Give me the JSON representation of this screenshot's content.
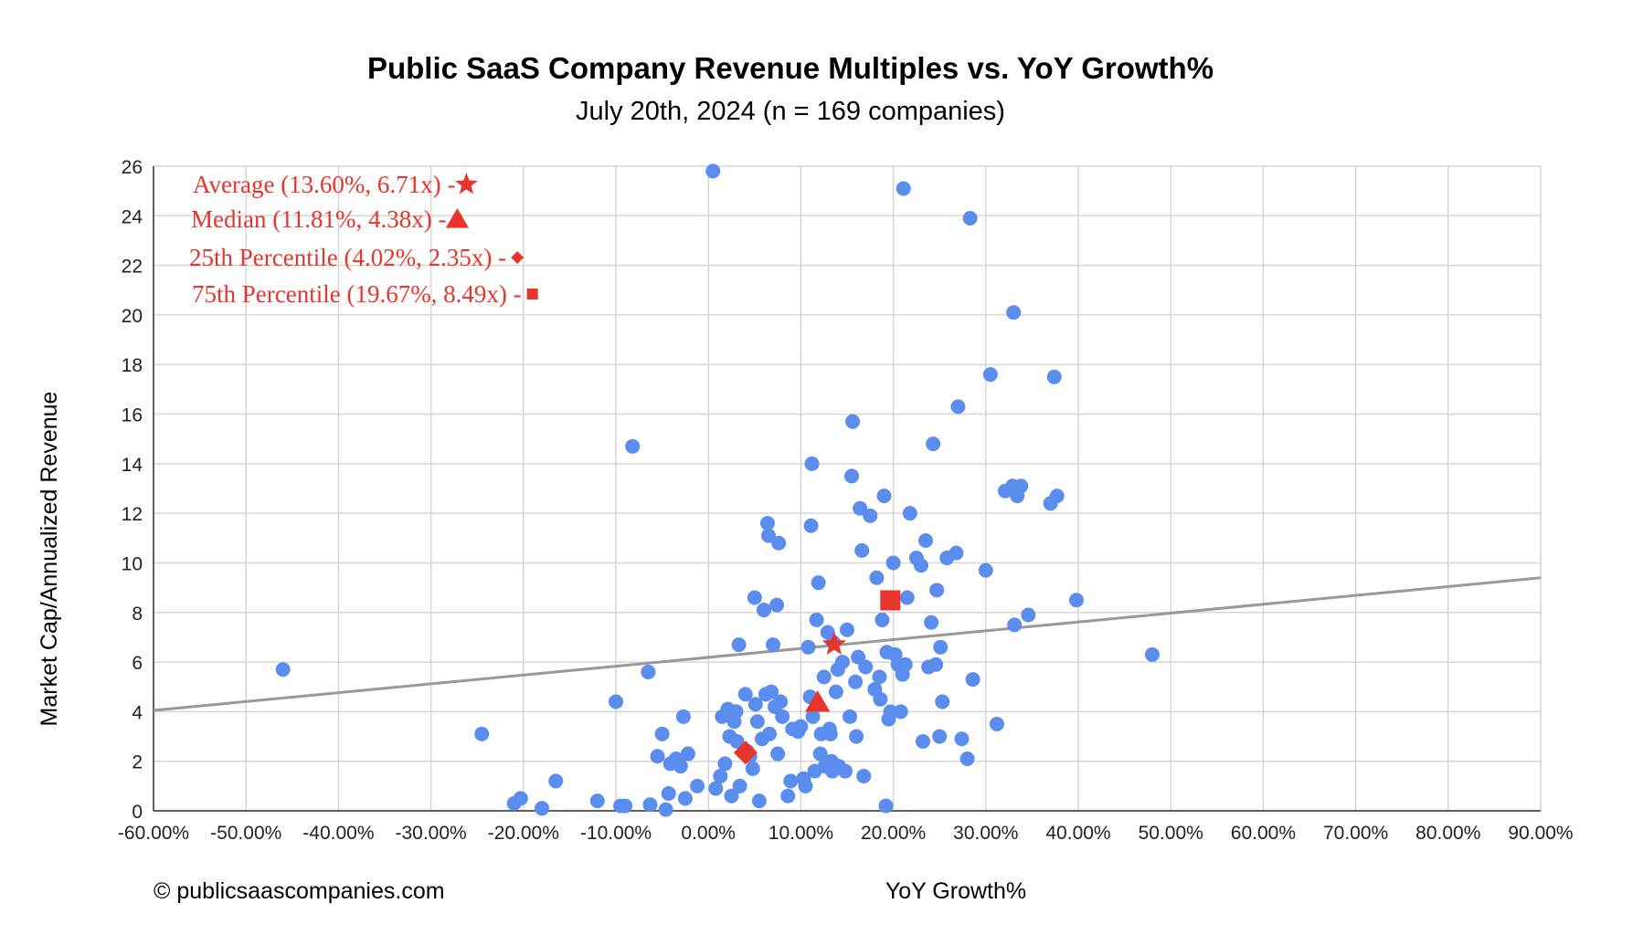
{
  "chart_data": {
    "type": "scatter",
    "title": "Public SaaS Company Revenue Multiples vs. YoY Growth%",
    "subtitle": "July 20th, 2024 (n = 169 companies)",
    "xlabel": "YoY Growth%",
    "ylabel": "Market Cap/Annualized Revenue",
    "xlim": [
      -60,
      90
    ],
    "ylim": [
      0,
      26
    ],
    "x_ticks": [
      "-60.00%",
      "-50.00%",
      "-40.00%",
      "-30.00%",
      "-20.00%",
      "-10.00%",
      "0.00%",
      "10.00%",
      "20.00%",
      "30.00%",
      "40.00%",
      "50.00%",
      "60.00%",
      "70.00%",
      "80.00%",
      "90.00%"
    ],
    "y_ticks": [
      "0",
      "2",
      "4",
      "6",
      "8",
      "10",
      "12",
      "14",
      "16",
      "18",
      "20",
      "22",
      "24",
      "26"
    ],
    "grid": true,
    "point_color": "#5b8def",
    "marker_color": "#e8352c",
    "trendline_color": "#999999",
    "trendline": [
      [
        -60,
        4.05
      ],
      [
        90,
        9.4
      ]
    ],
    "credit": "© publicsaascompanies.com",
    "annotations": [
      {
        "text": "Average (13.60%, 6.71x) - ",
        "marker": "star",
        "x": 13.6,
        "y": 6.71
      },
      {
        "text": "Median (11.81%, 4.38x) - ",
        "marker": "triangle",
        "x": 11.81,
        "y": 4.38
      },
      {
        "text": "25th Percentile (4.02%, 2.35x) - ",
        "marker": "diamond",
        "x": 4.02,
        "y": 2.35
      },
      {
        "text": "75th Percentile (19.67%, 8.49x) - ",
        "marker": "square",
        "x": 19.67,
        "y": 8.49
      }
    ],
    "series": [
      {
        "points": [
          [
            -46,
            5.7
          ],
          [
            -24.5,
            3.1
          ],
          [
            -21,
            0.3
          ],
          [
            -20.3,
            0.5
          ],
          [
            -18,
            0.1
          ],
          [
            -16.5,
            1.2
          ],
          [
            -12,
            0.4
          ],
          [
            -10,
            4.4
          ],
          [
            -9.5,
            0.2
          ],
          [
            -9,
            0.2
          ],
          [
            -8.2,
            14.7
          ],
          [
            -6.5,
            5.6
          ],
          [
            -6.3,
            0.25
          ],
          [
            -5.5,
            2.2
          ],
          [
            -5,
            3.1
          ],
          [
            -4.6,
            0.05
          ],
          [
            -4.3,
            0.7
          ],
          [
            -4.1,
            1.9
          ],
          [
            -3.5,
            2.1
          ],
          [
            -3,
            1.8
          ],
          [
            -2.7,
            3.8
          ],
          [
            -2.5,
            0.5
          ],
          [
            -2.2,
            2.3
          ],
          [
            -1.2,
            1.0
          ],
          [
            0.5,
            25.8
          ],
          [
            0.8,
            0.9
          ],
          [
            1.3,
            1.4
          ],
          [
            1.5,
            3.8
          ],
          [
            1.8,
            1.9
          ],
          [
            2.1,
            4.1
          ],
          [
            2.3,
            3.0
          ],
          [
            2.5,
            0.6
          ],
          [
            2.8,
            3.6
          ],
          [
            3.0,
            4.0
          ],
          [
            3.1,
            2.8
          ],
          [
            3.3,
            6.7
          ],
          [
            3.4,
            1.0
          ],
          [
            4.0,
            4.7
          ],
          [
            4.2,
            2.4
          ],
          [
            4.5,
            2.2
          ],
          [
            4.8,
            1.7
          ],
          [
            5.0,
            8.6
          ],
          [
            5.1,
            4.3
          ],
          [
            5.3,
            3.6
          ],
          [
            5.5,
            0.4
          ],
          [
            5.8,
            2.9
          ],
          [
            6.0,
            8.1
          ],
          [
            6.2,
            4.7
          ],
          [
            6.4,
            11.6
          ],
          [
            6.6,
            3.1
          ],
          [
            6.5,
            11.1
          ],
          [
            6.8,
            4.8
          ],
          [
            7.0,
            6.7
          ],
          [
            7.2,
            4.2
          ],
          [
            7.4,
            8.3
          ],
          [
            7.5,
            2.3
          ],
          [
            7.6,
            10.8
          ],
          [
            7.8,
            4.4
          ],
          [
            8.0,
            3.8
          ],
          [
            8.6,
            0.6
          ],
          [
            8.9,
            1.2
          ],
          [
            9.1,
            3.3
          ],
          [
            9.7,
            3.2
          ],
          [
            10.0,
            3.4
          ],
          [
            10.3,
            1.3
          ],
          [
            10.5,
            1.0
          ],
          [
            10.8,
            6.6
          ],
          [
            11.0,
            4.6
          ],
          [
            11.1,
            11.5
          ],
          [
            11.2,
            14.0
          ],
          [
            11.3,
            3.8
          ],
          [
            11.5,
            1.6
          ],
          [
            11.7,
            7.7
          ],
          [
            11.9,
            9.2
          ],
          [
            12.1,
            2.3
          ],
          [
            12.2,
            3.1
          ],
          [
            12.5,
            5.4
          ],
          [
            12.6,
            1.8
          ],
          [
            12.9,
            7.2
          ],
          [
            13.1,
            3.3
          ],
          [
            13.2,
            3.1
          ],
          [
            13.3,
            2.0
          ],
          [
            13.4,
            1.6
          ],
          [
            13.5,
            6.8
          ],
          [
            13.8,
            4.8
          ],
          [
            14.0,
            5.7
          ],
          [
            14.1,
            1.8
          ],
          [
            14.5,
            6.0
          ],
          [
            14.8,
            1.6
          ],
          [
            15.0,
            7.3
          ],
          [
            15.3,
            3.8
          ],
          [
            15.5,
            13.5
          ],
          [
            15.6,
            15.7
          ],
          [
            15.9,
            5.2
          ],
          [
            16.0,
            3.0
          ],
          [
            16.2,
            6.2
          ],
          [
            16.4,
            12.2
          ],
          [
            16.6,
            10.5
          ],
          [
            16.8,
            1.4
          ],
          [
            17.0,
            5.8
          ],
          [
            17.5,
            11.9
          ],
          [
            18.0,
            4.9
          ],
          [
            18.2,
            9.4
          ],
          [
            18.5,
            5.4
          ],
          [
            18.6,
            4.5
          ],
          [
            18.8,
            7.7
          ],
          [
            19.0,
            12.7
          ],
          [
            19.2,
            0.2
          ],
          [
            19.3,
            6.4
          ],
          [
            19.5,
            3.7
          ],
          [
            19.7,
            4.0
          ],
          [
            20.0,
            10.0
          ],
          [
            20.2,
            6.3
          ],
          [
            20.5,
            5.9
          ],
          [
            20.8,
            4.0
          ],
          [
            21.0,
            5.5
          ],
          [
            21.1,
            25.1
          ],
          [
            21.3,
            5.9
          ],
          [
            21.5,
            8.6
          ],
          [
            21.8,
            12.0
          ],
          [
            22.5,
            10.2
          ],
          [
            23.0,
            9.9
          ],
          [
            23.2,
            2.8
          ],
          [
            23.5,
            10.9
          ],
          [
            23.8,
            5.8
          ],
          [
            24.1,
            7.6
          ],
          [
            24.3,
            14.8
          ],
          [
            24.6,
            5.9
          ],
          [
            24.7,
            8.9
          ],
          [
            25.0,
            3.0
          ],
          [
            25.1,
            6.6
          ],
          [
            25.3,
            4.4
          ],
          [
            25.8,
            10.2
          ],
          [
            26.8,
            10.4
          ],
          [
            27.0,
            16.3
          ],
          [
            27.4,
            2.9
          ],
          [
            28.0,
            2.1
          ],
          [
            28.3,
            23.9
          ],
          [
            28.6,
            5.3
          ],
          [
            30.0,
            9.7
          ],
          [
            30.5,
            17.6
          ],
          [
            31.2,
            3.5
          ],
          [
            32.1,
            12.9
          ],
          [
            32.9,
            13.1
          ],
          [
            33.0,
            20.1
          ],
          [
            33.1,
            7.5
          ],
          [
            33.4,
            12.7
          ],
          [
            33.8,
            13.1
          ],
          [
            34.6,
            7.9
          ],
          [
            37.0,
            12.4
          ],
          [
            37.4,
            17.5
          ],
          [
            37.7,
            12.7
          ],
          [
            39.8,
            8.5
          ],
          [
            48.0,
            6.3
          ]
        ]
      }
    ]
  }
}
